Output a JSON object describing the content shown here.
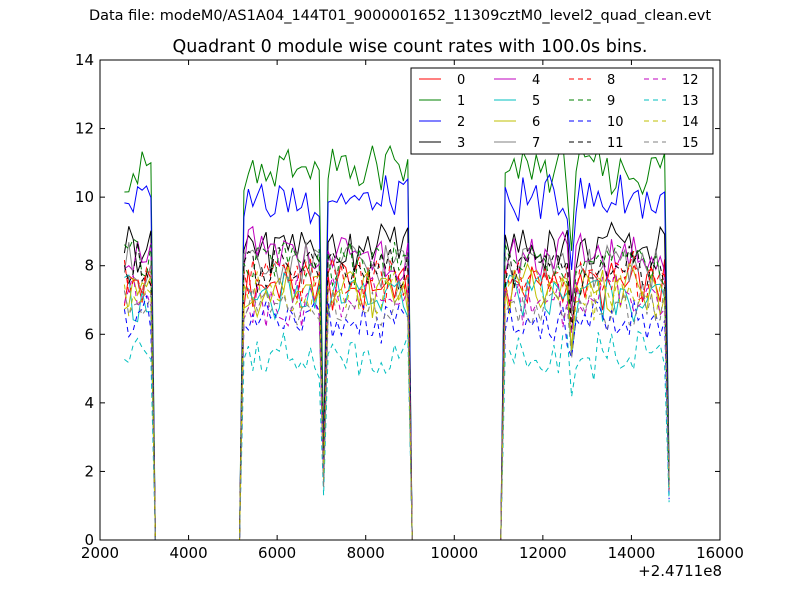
{
  "figure": {
    "suptitle": "Data file: modeM0/AS1A04_144T01_9000001652_11309cztM0_level2_quad_clean.evt",
    "offset_label": "+2.4711e8"
  },
  "chart_data": {
    "type": "line",
    "title": "Quadrant 0 module wise count rates with 100.0s bins.",
    "xlabel": "",
    "ylabel": "",
    "xlim": [
      2000,
      16000
    ],
    "ylim": [
      0,
      14
    ],
    "x_offset": 247110000,
    "xticks": [
      2000,
      4000,
      6000,
      8000,
      10000,
      12000,
      14000,
      16000
    ],
    "yticks": [
      0,
      2,
      4,
      6,
      8,
      10,
      12,
      14
    ],
    "grid": false,
    "legend_position": "top-right",
    "legend_columns": 4,
    "x": [
      2550,
      2650,
      2750,
      2850,
      2950,
      3050,
      3150,
      3250,
      3350,
      3450,
      3550,
      3650,
      3750,
      3850,
      3950,
      4050,
      4150,
      4250,
      4350,
      4450,
      4550,
      4650,
      4750,
      4850,
      4950,
      5050,
      5150,
      5250,
      5350,
      5450,
      5550,
      5650,
      5750,
      5850,
      5950,
      6050,
      6150,
      6250,
      6350,
      6450,
      6550,
      6650,
      6750,
      6850,
      6950,
      7050,
      7150,
      7250,
      7350,
      7450,
      7550,
      7650,
      7750,
      7850,
      7950,
      8050,
      8150,
      8250,
      8350,
      8450,
      8550,
      8650,
      8750,
      8850,
      8950,
      9050,
      9150,
      9250,
      9350,
      9450,
      9550,
      9650,
      9750,
      9850,
      9950,
      10050,
      10150,
      10250,
      10350,
      10450,
      10550,
      10650,
      10750,
      10850,
      10950,
      11050,
      11150,
      11250,
      11350,
      11450,
      11550,
      11650,
      11750,
      11850,
      11950,
      12050,
      12150,
      12250,
      12350,
      12450,
      12550,
      12650,
      12750,
      12850,
      12950,
      13050,
      13150,
      13250,
      13350,
      13450,
      13550,
      13650,
      13750,
      13850,
      13950,
      14050,
      14150,
      14250,
      14350,
      14450,
      14550,
      14650,
      14750,
      14850
    ],
    "segments": [
      {
        "start": 2550,
        "end": 3150,
        "level": 1.0
      },
      {
        "start": 3250,
        "end": 5150,
        "level": 0.0
      },
      {
        "start": 5250,
        "end": 6950,
        "level": 1.0
      },
      {
        "start": 7050,
        "end": 7050,
        "level": 0.25
      },
      {
        "start": 7150,
        "end": 8950,
        "level": 1.0
      },
      {
        "start": 9050,
        "end": 11050,
        "level": 0.0
      },
      {
        "start": 11150,
        "end": 12550,
        "level": 1.0
      },
      {
        "start": 12650,
        "end": 12650,
        "level": 0.8
      },
      {
        "start": 12750,
        "end": 14750,
        "level": 1.0
      },
      {
        "start": 14850,
        "end": 14850,
        "level": 0.2
      }
    ],
    "series": [
      {
        "name": "0",
        "color": "#ff0000",
        "style": "solid",
        "mean": 7.4
      },
      {
        "name": "1",
        "color": "#008000",
        "style": "solid",
        "mean": 10.8
      },
      {
        "name": "2",
        "color": "#0000ff",
        "style": "solid",
        "mean": 9.9
      },
      {
        "name": "3",
        "color": "#000000",
        "style": "solid",
        "mean": 8.6
      },
      {
        "name": "4",
        "color": "#bf00bf",
        "style": "solid",
        "mean": 8.3
      },
      {
        "name": "5",
        "color": "#00bfbf",
        "style": "solid",
        "mean": 7.1
      },
      {
        "name": "6",
        "color": "#bfbf00",
        "style": "solid",
        "mean": 7.3
      },
      {
        "name": "7",
        "color": "#808080",
        "style": "solid",
        "mean": 8.0
      },
      {
        "name": "8",
        "color": "#ff0000",
        "style": "dashed",
        "mean": 7.6
      },
      {
        "name": "9",
        "color": "#008000",
        "style": "dashed",
        "mean": 8.1
      },
      {
        "name": "10",
        "color": "#0000ff",
        "style": "dashed",
        "mean": 6.3
      },
      {
        "name": "11",
        "color": "#000000",
        "style": "dashed",
        "mean": 7.9
      },
      {
        "name": "12",
        "color": "#bf00bf",
        "style": "dashed",
        "mean": 7.0
      },
      {
        "name": "13",
        "color": "#00bfbf",
        "style": "dashed",
        "mean": 5.4
      },
      {
        "name": "14",
        "color": "#bfbf00",
        "style": "dashed",
        "mean": 7.2
      },
      {
        "name": "15",
        "color": "#808080",
        "style": "dashed",
        "mean": 6.8
      }
    ]
  }
}
